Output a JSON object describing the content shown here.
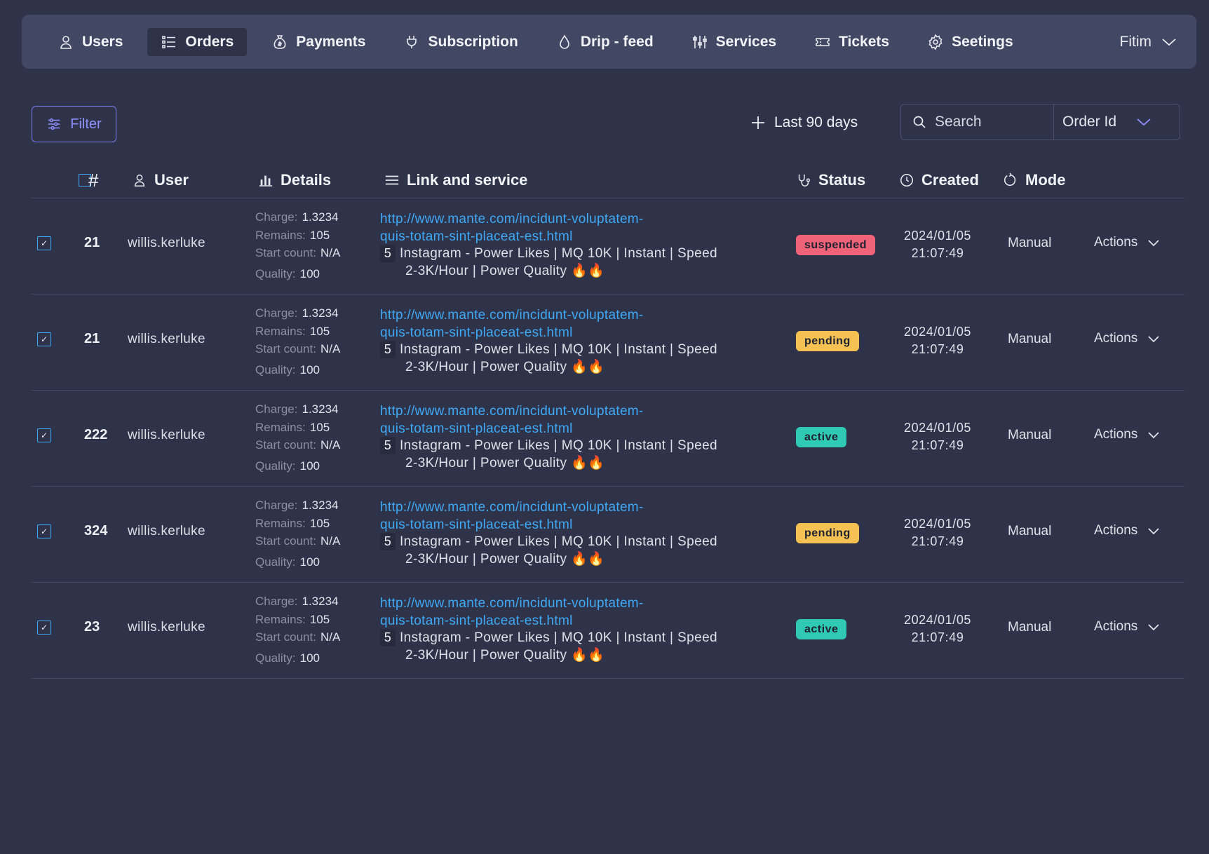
{
  "nav": {
    "items": [
      {
        "label": "Users",
        "icon": "user-icon"
      },
      {
        "label": "Orders",
        "icon": "list-icon"
      },
      {
        "label": "Payments",
        "icon": "money-bag-icon"
      },
      {
        "label": "Subscription",
        "icon": "plug-icon"
      },
      {
        "label": "Drip - feed",
        "icon": "droplet-icon"
      },
      {
        "label": "Services",
        "icon": "sliders-icon"
      },
      {
        "label": "Tickets",
        "icon": "ticket-icon"
      },
      {
        "label": "Seetings",
        "icon": "gear-icon"
      }
    ],
    "active": "Orders",
    "user_name": "Fitim"
  },
  "toolbar": {
    "filter_label": "Filter",
    "range_label": "Last 90 days",
    "search_placeholder": "Search",
    "search_field": "Order Id"
  },
  "table": {
    "headers": {
      "id": "#",
      "user": "User",
      "details": "Details",
      "link": "Link and service",
      "status": "Status",
      "created": "Created",
      "mode": "Mode"
    },
    "details_labels": {
      "charge": "Charge:",
      "remains": "Remains:",
      "start_count": "Start count:",
      "quality": "Quality:"
    },
    "rows": [
      {
        "checked": true,
        "id": "21",
        "user": "willis.kerluke",
        "charge": "1.3234",
        "remains": "105",
        "start_count": "N/A",
        "quality": "100",
        "link_line1": "http://www.mante.com/incidunt-voluptatem-",
        "link_line2": "quis-totam-sint-placeat-est.html",
        "service_num": "5",
        "service_line1": "Instagram - Power Likes | MQ 10K | Instant | Speed",
        "service_line2": "2-3K/Hour | Power Quality",
        "service_emoji": "🔥🔥",
        "status": "suspended",
        "date": "2024/01/05",
        "time": "21:07:49",
        "mode": "Manual",
        "actions": "Actions"
      },
      {
        "checked": true,
        "id": "21",
        "user": "willis.kerluke",
        "charge": "1.3234",
        "remains": "105",
        "start_count": "N/A",
        "quality": "100",
        "link_line1": "http://www.mante.com/incidunt-voluptatem-",
        "link_line2": "quis-totam-sint-placeat-est.html",
        "service_num": "5",
        "service_line1": "Instagram - Power Likes | MQ 10K | Instant | Speed",
        "service_line2": "2-3K/Hour | Power Quality",
        "service_emoji": "🔥🔥",
        "status": "pending",
        "date": "2024/01/05",
        "time": "21:07:49",
        "mode": "Manual",
        "actions": "Actions"
      },
      {
        "checked": true,
        "id": "222",
        "user": "willis.kerluke",
        "charge": "1.3234",
        "remains": "105",
        "start_count": "N/A",
        "quality": "100",
        "link_line1": "http://www.mante.com/incidunt-voluptatem-",
        "link_line2": "quis-totam-sint-placeat-est.html",
        "service_num": "5",
        "service_line1": "Instagram - Power Likes | MQ 10K | Instant | Speed",
        "service_line2": "2-3K/Hour | Power Quality",
        "service_emoji": "🔥🔥",
        "status": "active",
        "date": "2024/01/05",
        "time": "21:07:49",
        "mode": "Manual",
        "actions": "Actions"
      },
      {
        "checked": true,
        "id": "324",
        "user": "willis.kerluke",
        "charge": "1.3234",
        "remains": "105",
        "start_count": "N/A",
        "quality": "100",
        "link_line1": "http://www.mante.com/incidunt-voluptatem-",
        "link_line2": "quis-totam-sint-placeat-est.html",
        "service_num": "5",
        "service_line1": "Instagram - Power Likes | MQ 10K | Instant | Speed",
        "service_line2": "2-3K/Hour | Power Quality",
        "service_emoji": "🔥🔥",
        "status": "pending",
        "date": "2024/01/05",
        "time": "21:07:49",
        "mode": "Manual",
        "actions": "Actions"
      },
      {
        "checked": true,
        "id": "23",
        "user": "willis.kerluke",
        "charge": "1.3234",
        "remains": "105",
        "start_count": "N/A",
        "quality": "100",
        "link_line1": "http://www.mante.com/incidunt-voluptatem-",
        "link_line2": "quis-totam-sint-placeat-est.html",
        "service_num": "5",
        "service_line1": "Instagram - Power Likes | MQ 10K | Instant | Speed",
        "service_line2": "2-3K/Hour | Power Quality",
        "service_emoji": "🔥🔥",
        "status": "active",
        "date": "2024/01/05",
        "time": "21:07:49",
        "mode": "Manual",
        "actions": "Actions"
      }
    ]
  },
  "colors": {
    "background": "#2f3349",
    "nav_bg": "#424864",
    "accent": "#7c7ff0",
    "link": "#3fa9f5",
    "suspended": "#f06277",
    "pending": "#f4c152",
    "active": "#2fc9b4"
  }
}
